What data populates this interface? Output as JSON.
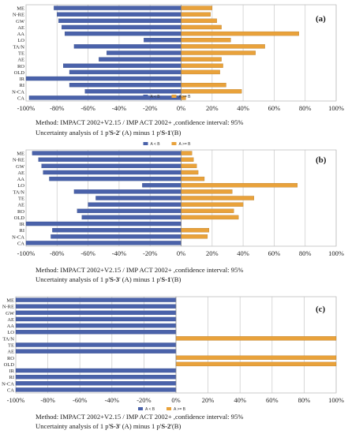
{
  "chart_data": [
    {
      "type": "bar",
      "orientation": "horizontal",
      "panel_label": "(a)",
      "categories": [
        "ME",
        "N-RE",
        "GW",
        "AE",
        "AA",
        "LO",
        "TA/N",
        "TE",
        "AE",
        "RO",
        "OLD",
        "IR",
        "RI",
        "N-CA",
        "CA"
      ],
      "series": [
        {
          "name": "A < B",
          "color": "#4a62aa",
          "values": [
            -82,
            -80,
            -79,
            -77,
            -75,
            -24,
            -69,
            -48,
            -53,
            -76,
            -72,
            -100,
            -72,
            -62,
            -98
          ]
        },
        {
          "name": "A >= B",
          "color": "#e9a23b",
          "values": [
            20,
            19,
            23,
            26,
            76,
            32,
            54,
            48,
            26,
            27,
            25,
            0,
            29,
            39,
            3
          ]
        }
      ],
      "xlim": [
        -100,
        100
      ],
      "xticks": [
        "-100%",
        "-80%",
        "-60%",
        "-40%",
        "-20%",
        "0%",
        "20%",
        "40%",
        "60%",
        "80%",
        "100%"
      ],
      "method_text": "Method: IMPACT 2002+V2.15 / IMP ACT 2002+ ,confidence interval: 95%",
      "uncertainty_prefix": "Uncertainty analysis of 1 p'",
      "product_a": "S-2",
      "mid_text": "' (A) minus 1 p'",
      "product_b": "S-1",
      "end_text": "'(B)"
    },
    {
      "type": "bar",
      "orientation": "horizontal",
      "panel_label": "(b)",
      "categories": [
        "ME",
        "N-RE",
        "GW",
        "AE",
        "AA",
        "LO",
        "TA/N",
        "TE",
        "AE",
        "RO",
        "OLD",
        "IR",
        "RI",
        "N-CA",
        "CA"
      ],
      "series": [
        {
          "name": "A < B",
          "color": "#4a62aa",
          "values": [
            -96,
            -92,
            -90,
            -89,
            -85,
            -25,
            -69,
            -55,
            -60,
            -67,
            -64,
            -100,
            -83,
            -84,
            -100
          ]
        },
        {
          "name": "A >= B",
          "color": "#e9a23b",
          "values": [
            7,
            8,
            10,
            11,
            15,
            75,
            33,
            47,
            40,
            34,
            37,
            0,
            18,
            17,
            0
          ]
        }
      ],
      "xlim": [
        -100,
        100
      ],
      "xticks": [
        "-100%",
        "-80%",
        "-60%",
        "-40%",
        "-20%",
        "0%",
        "20%",
        "40%",
        "60%",
        "80%",
        "100%"
      ],
      "method_text": "Method: IMPACT 2002+V2.15 / IMP ACT 2002+ ,confidence interval: 95%",
      "uncertainty_prefix": "Uncertainty analysis of 1 p'",
      "product_a": "S-3",
      "mid_text": "' (A) minus 1 p'",
      "product_b": "S-1",
      "end_text": "'(B)"
    },
    {
      "type": "bar",
      "orientation": "horizontal",
      "panel_label": "(c)",
      "categories": [
        "ME",
        "N-RE",
        "GW",
        "AE",
        "AA",
        "LO",
        "TA/N",
        "TE",
        "AE",
        "RO",
        "OLD",
        "IR",
        "RI",
        "N-CA",
        "CA"
      ],
      "series": [
        {
          "name": "A < B",
          "color": "#4a62aa",
          "values": [
            -100,
            -100,
            -100,
            -100,
            -100,
            -100,
            0,
            -100,
            -100,
            0,
            0,
            -100,
            -100,
            -100,
            -100
          ]
        },
        {
          "name": "A >= B",
          "color": "#e9a23b",
          "values": [
            0,
            0,
            0,
            0,
            0,
            0,
            100,
            0,
            0,
            100,
            100,
            0,
            0,
            0,
            0
          ]
        }
      ],
      "xlim": [
        -100,
        100
      ],
      "xticks": [
        "-100%",
        "-80%",
        "-60%",
        "-40%",
        "-20%",
        "0%",
        "20%",
        "40%",
        "60%",
        "80%",
        "100%"
      ],
      "method_text": "Method: IMPACT 2002+V2.15 / IMP ACT 2002+ ,confidence interval: 95%",
      "uncertainty_prefix": "Uncertainty analysis of 1 p'",
      "product_a": "S-3",
      "mid_text": "' (A) minus 1 p'",
      "product_b": "S-2",
      "end_text": "'(B)"
    }
  ]
}
